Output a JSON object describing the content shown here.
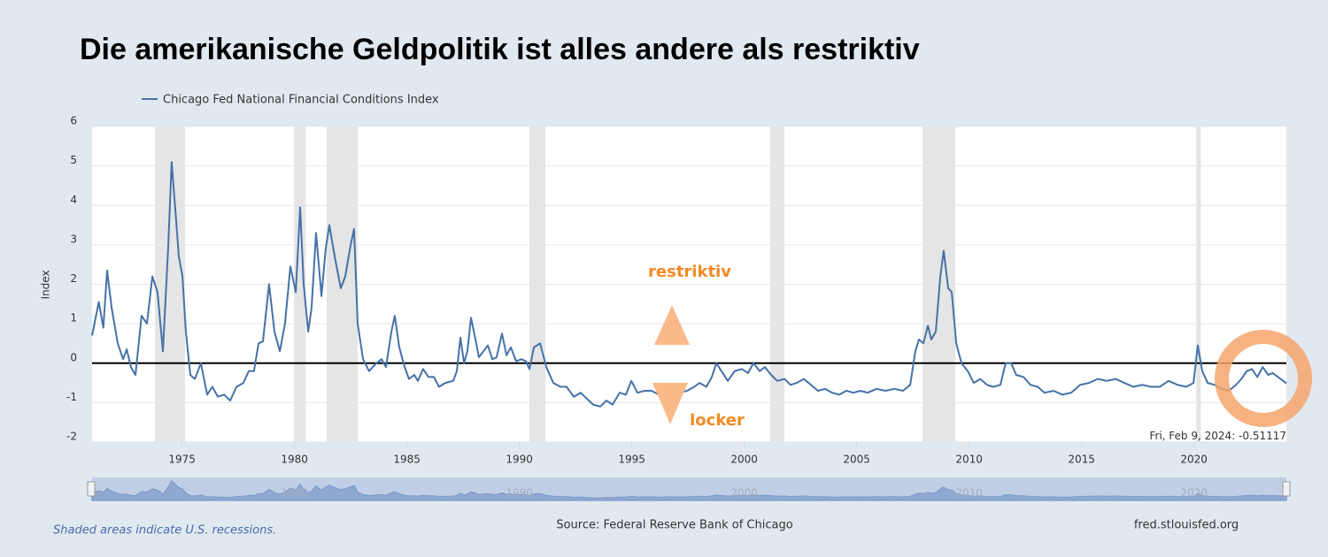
{
  "title": "Die amerikanische Geldpolitik ist alles andere als restriktiv",
  "chart_data": {
    "type": "line",
    "y_label": "Index",
    "xlim": [
      1971,
      2024.11
    ],
    "xticks": [
      1975,
      1980,
      1985,
      1990,
      1995,
      2000,
      2005,
      2010,
      2015,
      2020
    ],
    "ylim": [
      -2,
      6
    ],
    "yticks": [
      -2,
      -1,
      0,
      1,
      2,
      3,
      4,
      5,
      6
    ],
    "grid": true,
    "recessions": [
      [
        1973.8,
        1975.13
      ],
      [
        1979.98,
        1980.5
      ],
      [
        1981.43,
        1982.81
      ],
      [
        1990.45,
        1991.16
      ],
      [
        2001.16,
        2001.79
      ],
      [
        2007.93,
        2009.39
      ],
      [
        2020.1,
        2020.3
      ]
    ],
    "x": [
      1971.0,
      1971.3,
      1971.5,
      1971.67,
      1971.87,
      1972.14,
      1972.38,
      1972.54,
      1972.73,
      1972.93,
      1973.2,
      1973.44,
      1973.68,
      1973.91,
      1974.15,
      1974.39,
      1974.54,
      1974.7,
      1974.86,
      1975.02,
      1975.17,
      1975.37,
      1975.57,
      1975.84,
      1976.12,
      1976.35,
      1976.59,
      1976.87,
      1977.14,
      1977.42,
      1977.73,
      1977.97,
      1978.2,
      1978.4,
      1978.6,
      1978.87,
      1979.11,
      1979.35,
      1979.58,
      1979.82,
      1980.06,
      1980.25,
      1980.41,
      1980.61,
      1980.76,
      1980.96,
      1981.2,
      1981.39,
      1981.55,
      1981.79,
      1982.06,
      1982.26,
      1982.5,
      1982.65,
      1982.81,
      1983.05,
      1983.32,
      1983.64,
      1983.87,
      1984.07,
      1984.31,
      1984.46,
      1984.66,
      1984.9,
      1985.09,
      1985.33,
      1985.49,
      1985.72,
      1985.96,
      1986.2,
      1986.43,
      1986.71,
      1987.06,
      1987.22,
      1987.38,
      1987.54,
      1987.69,
      1987.85,
      1988.05,
      1988.2,
      1988.4,
      1988.6,
      1988.8,
      1988.99,
      1989.23,
      1989.43,
      1989.62,
      1989.86,
      1990.09,
      1990.29,
      1990.45,
      1990.65,
      1990.92,
      1991.2,
      1991.51,
      1991.83,
      1992.1,
      1992.42,
      1992.73,
      1993.0,
      1993.28,
      1993.6,
      1993.87,
      1994.15,
      1994.46,
      1994.74,
      1994.98,
      1995.25,
      1995.57,
      1995.88,
      1996.2,
      1996.51,
      1996.83,
      1997.14,
      1997.46,
      1997.78,
      1998.01,
      1998.32,
      1998.56,
      1998.76,
      1998.99,
      1999.27,
      1999.58,
      1999.9,
      2000.17,
      2000.41,
      2000.69,
      2000.92,
      2001.2,
      2001.47,
      2001.79,
      2002.06,
      2002.34,
      2002.65,
      2002.97,
      2003.28,
      2003.6,
      2003.91,
      2004.23,
      2004.54,
      2004.86,
      2005.17,
      2005.49,
      2005.88,
      2006.28,
      2006.67,
      2007.06,
      2007.38,
      2007.61,
      2007.77,
      2007.97,
      2008.17,
      2008.32,
      2008.52,
      2008.72,
      2008.87,
      2009.07,
      2009.23,
      2009.43,
      2009.66,
      2009.94,
      2010.21,
      2010.49,
      2010.8,
      2011.08,
      2011.39,
      2011.63,
      2011.87,
      2012.1,
      2012.42,
      2012.73,
      2013.05,
      2013.36,
      2013.76,
      2014.15,
      2014.54,
      2014.94,
      2015.33,
      2015.72,
      2016.12,
      2016.51,
      2016.91,
      2017.3,
      2017.7,
      2018.09,
      2018.48,
      2018.87,
      2019.27,
      2019.66,
      2019.98,
      2020.17,
      2020.37,
      2020.61,
      2020.92,
      2021.24,
      2021.55,
      2021.87,
      2022.11,
      2022.35,
      2022.58,
      2022.82,
      2023.06,
      2023.3,
      2023.5,
      2023.74,
      2024.11
    ],
    "series": [
      {
        "name": "Chicago Fed National Financial Conditions Index",
        "color": "#4572a7",
        "values": [
          0.7,
          1.55,
          0.9,
          2.35,
          1.4,
          0.5,
          0.1,
          0.35,
          -0.1,
          -0.3,
          1.2,
          1.0,
          2.2,
          1.8,
          0.3,
          3.0,
          5.1,
          3.9,
          2.7,
          2.2,
          0.8,
          -0.3,
          -0.4,
          0.0,
          -0.8,
          -0.6,
          -0.85,
          -0.8,
          -0.95,
          -0.6,
          -0.5,
          -0.2,
          -0.2,
          0.5,
          0.55,
          2.0,
          0.8,
          0.3,
          1.0,
          2.45,
          1.8,
          3.95,
          2.0,
          0.8,
          1.4,
          3.3,
          1.7,
          2.9,
          3.5,
          2.7,
          1.9,
          2.2,
          3.0,
          3.4,
          1.0,
          0.1,
          -0.2,
          0.0,
          0.1,
          -0.1,
          0.8,
          1.2,
          0.4,
          -0.1,
          -0.4,
          -0.3,
          -0.45,
          -0.15,
          -0.35,
          -0.35,
          -0.6,
          -0.5,
          -0.45,
          -0.2,
          0.65,
          0.0,
          0.3,
          1.15,
          0.6,
          0.15,
          0.3,
          0.45,
          0.1,
          0.15,
          0.75,
          0.2,
          0.4,
          0.05,
          0.1,
          0.05,
          -0.15,
          0.4,
          0.5,
          -0.1,
          -0.5,
          -0.6,
          -0.6,
          -0.85,
          -0.75,
          -0.9,
          -1.05,
          -1.1,
          -0.95,
          -1.05,
          -0.75,
          -0.8,
          -0.45,
          -0.75,
          -0.7,
          -0.7,
          -0.8,
          -0.7,
          -0.7,
          -0.75,
          -0.7,
          -0.6,
          -0.5,
          -0.6,
          -0.35,
          0.0,
          -0.2,
          -0.45,
          -0.2,
          -0.15,
          -0.25,
          0.0,
          -0.2,
          -0.1,
          -0.3,
          -0.45,
          -0.4,
          -0.55,
          -0.5,
          -0.4,
          -0.55,
          -0.7,
          -0.65,
          -0.75,
          -0.8,
          -0.7,
          -0.75,
          -0.7,
          -0.75,
          -0.65,
          -0.7,
          -0.65,
          -0.7,
          -0.55,
          0.3,
          0.6,
          0.5,
          0.95,
          0.6,
          0.8,
          2.2,
          2.85,
          1.9,
          1.8,
          0.5,
          0.0,
          -0.2,
          -0.5,
          -0.4,
          -0.55,
          -0.6,
          -0.55,
          0.0,
          0.0,
          -0.3,
          -0.35,
          -0.55,
          -0.6,
          -0.75,
          -0.7,
          -0.8,
          -0.75,
          -0.55,
          -0.5,
          -0.4,
          -0.45,
          -0.4,
          -0.5,
          -0.6,
          -0.55,
          -0.6,
          -0.6,
          -0.45,
          -0.55,
          -0.6,
          -0.5,
          0.45,
          -0.2,
          -0.5,
          -0.55,
          -0.65,
          -0.7,
          -0.55,
          -0.4,
          -0.2,
          -0.15,
          -0.35,
          -0.1,
          -0.3,
          -0.25,
          -0.35,
          -0.51117
        ]
      }
    ],
    "annotations": {
      "up": "restriktiv",
      "down": "locker"
    },
    "tooltip_date": "Fri, Feb 9, 2024:",
    "navigator_ticks": [
      1980,
      1990,
      2000,
      2010,
      2020
    ]
  },
  "footer": {
    "note": "Shaded areas indicate U.S. recessions.",
    "source": "Source: Federal Reserve Bank of Chicago",
    "site": "fred.stlouisfed.org"
  }
}
